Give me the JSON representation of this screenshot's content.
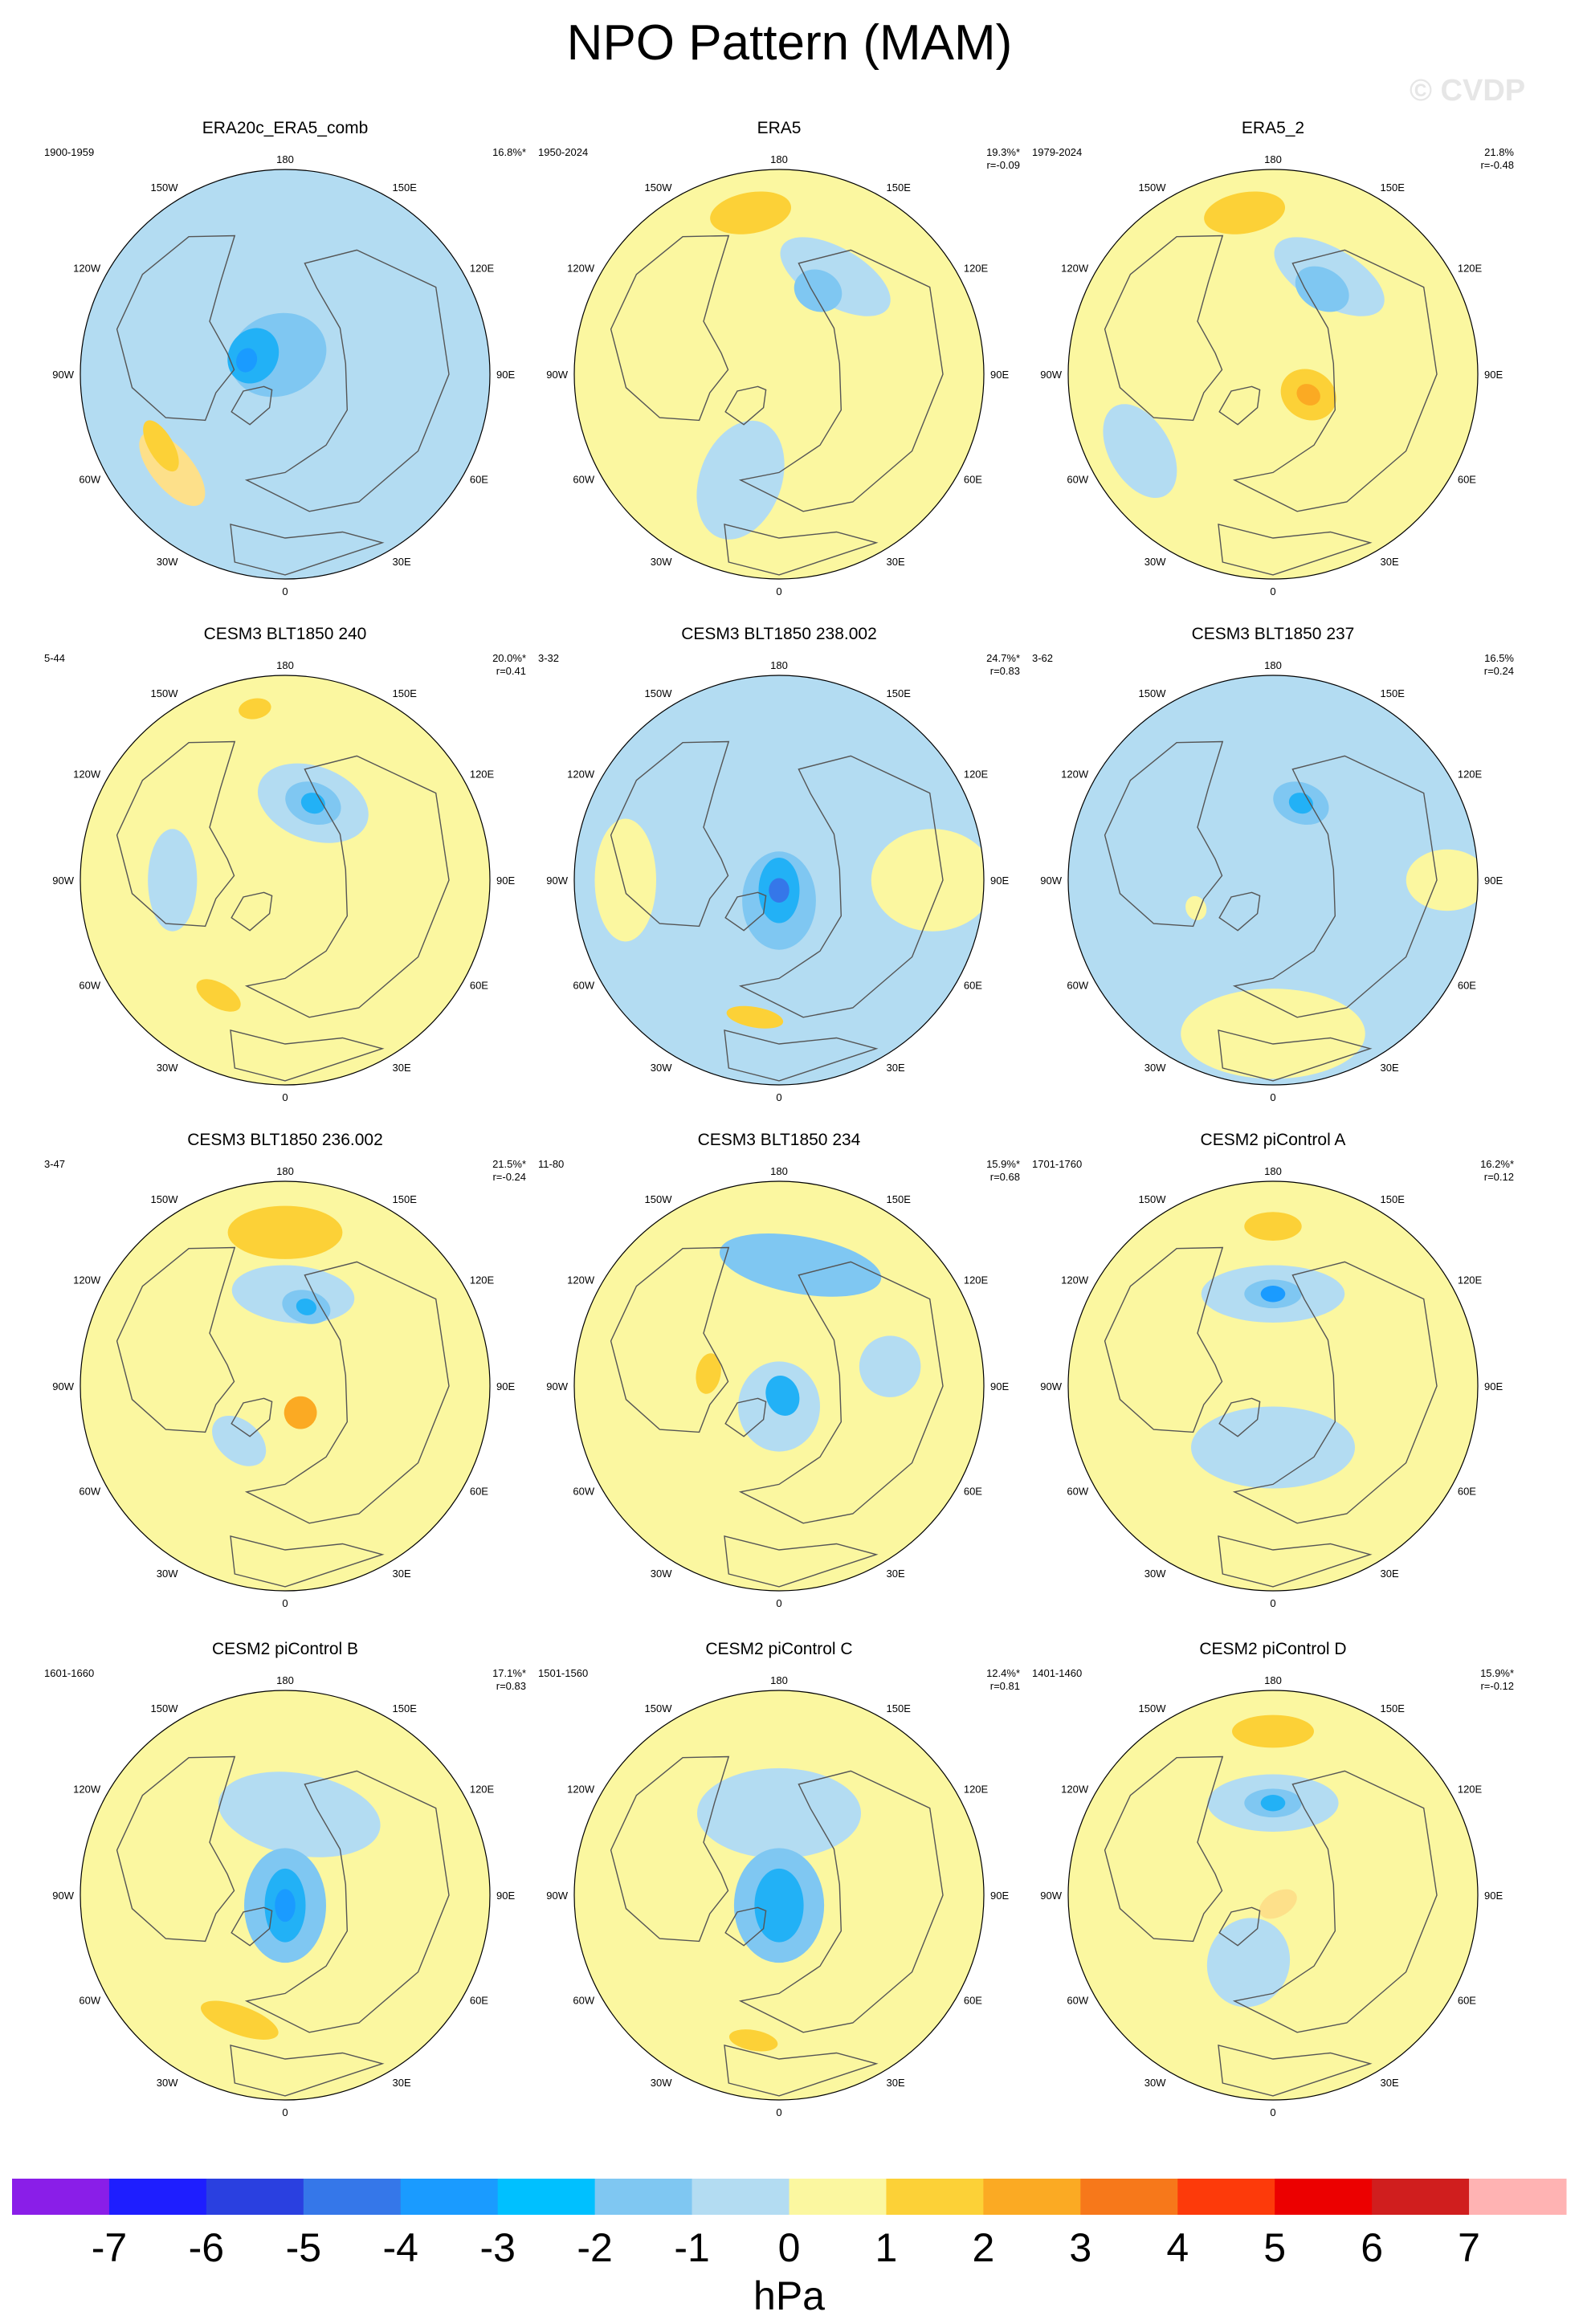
{
  "title": "NPO Pattern (MAM)",
  "watermark": "© CVDP",
  "map_labels": {
    "top": "180",
    "bottom": "0",
    "left": "90W",
    "right": "90E",
    "ul_outer": "120W",
    "ul_inner": "150W",
    "ur_inner": "150E",
    "ur_outer": "120E",
    "ll_outer": "60W",
    "ll_inner": "30W",
    "lr_inner": "30E",
    "lr_outer": "60E"
  },
  "colors": {
    "ocean": "#b3dcf2",
    "land": "#fbf7a0",
    "c_pos1": "#fde08a",
    "c_pos2": "#fcd137",
    "c_pos3": "#fbaa23",
    "c_pos4": "#f7781a",
    "c_neg1": "#7fc7f2",
    "c_neg2": "#22b1f6",
    "c_neg3": "#1a9bff",
    "c_neg4": "#3577e9",
    "coast": "#555555"
  },
  "panels": [
    {
      "title": "ERA20c_ERA5_comb",
      "years": "1900-1959",
      "pct": "16.8%*",
      "r": "",
      "base": "neg0",
      "features": [
        {
          "lon": 200,
          "d": 0.1,
          "rx": 0.24,
          "ry": 0.2,
          "lvl": "neg1"
        },
        {
          "lon": 240,
          "d": 0.18,
          "rx": 0.14,
          "ry": 0.12,
          "lvl": "neg2"
        },
        {
          "lon": 250,
          "d": 0.2,
          "rx": 0.06,
          "ry": 0.05,
          "lvl": "neg3"
        },
        {
          "lon": 310,
          "d": 0.72,
          "rx": 0.22,
          "ry": 0.1,
          "lvl": "pos1"
        },
        {
          "lon": 300,
          "d": 0.7,
          "rx": 0.14,
          "ry": 0.06,
          "lvl": "pos2"
        }
      ]
    },
    {
      "title": "ERA5",
      "years": "1950-2024",
      "pct": "19.3%*",
      "r": "r=-0.09",
      "base": "pos0",
      "features": [
        {
          "lon": 150,
          "d": 0.55,
          "rx": 0.3,
          "ry": 0.14,
          "lvl": "neg0"
        },
        {
          "lon": 190,
          "d": 0.8,
          "rx": 0.2,
          "ry": 0.1,
          "lvl": "pos2"
        },
        {
          "lon": 155,
          "d": 0.45,
          "rx": 0.12,
          "ry": 0.1,
          "lvl": "neg1"
        },
        {
          "lon": 340,
          "d": 0.55,
          "rx": 0.2,
          "ry": 0.3,
          "lvl": "neg0"
        }
      ]
    },
    {
      "title": "ERA5_2",
      "years": "1979-2024",
      "pct": "21.8%",
      "r": "r=-0.48",
      "base": "pos0",
      "features": [
        {
          "lon": 150,
          "d": 0.55,
          "rx": 0.3,
          "ry": 0.14,
          "lvl": "neg0"
        },
        {
          "lon": 190,
          "d": 0.8,
          "rx": 0.2,
          "ry": 0.1,
          "lvl": "pos2"
        },
        {
          "lon": 150,
          "d": 0.48,
          "rx": 0.14,
          "ry": 0.1,
          "lvl": "neg1"
        },
        {
          "lon": 60,
          "d": 0.2,
          "rx": 0.12,
          "ry": 0.14,
          "lvl": "pos2"
        },
        {
          "lon": 60,
          "d": 0.2,
          "rx": 0.05,
          "ry": 0.06,
          "lvl": "pos3"
        },
        {
          "lon": 300,
          "d": 0.75,
          "rx": 0.25,
          "ry": 0.15,
          "lvl": "neg0"
        }
      ]
    },
    {
      "title": "CESM3 BLT1850 240",
      "years": "5-44",
      "pct": "20.0%*",
      "r": "r=0.41",
      "base": "pos0",
      "features": [
        {
          "lon": 160,
          "d": 0.4,
          "rx": 0.28,
          "ry": 0.18,
          "lvl": "neg0"
        },
        {
          "lon": 160,
          "d": 0.4,
          "rx": 0.14,
          "ry": 0.1,
          "lvl": "neg1"
        },
        {
          "lon": 160,
          "d": 0.4,
          "rx": 0.06,
          "ry": 0.05,
          "lvl": "neg2"
        },
        {
          "lon": 190,
          "d": 0.85,
          "rx": 0.08,
          "ry": 0.05,
          "lvl": "pos2"
        },
        {
          "lon": 330,
          "d": 0.65,
          "rx": 0.12,
          "ry": 0.06,
          "lvl": "pos2"
        },
        {
          "lon": 270,
          "d": 0.55,
          "rx": 0.25,
          "ry": 0.12,
          "lvl": "neg0"
        }
      ]
    },
    {
      "title": "CESM3 BLT1850 238.002",
      "years": "3-32",
      "pct": "24.7%*",
      "r": "r=0.83",
      "base": "neg0",
      "features": [
        {
          "lon": 270,
          "d": 0.75,
          "rx": 0.3,
          "ry": 0.15,
          "lvl": "pos0"
        },
        {
          "lon": 90,
          "d": 0.75,
          "rx": 0.25,
          "ry": 0.3,
          "lvl": "pos0"
        },
        {
          "lon": 0,
          "d": 0.1,
          "rx": 0.18,
          "ry": 0.24,
          "lvl": "neg1"
        },
        {
          "lon": 0,
          "d": 0.05,
          "rx": 0.1,
          "ry": 0.16,
          "lvl": "neg2"
        },
        {
          "lon": 0,
          "d": 0.05,
          "rx": 0.05,
          "ry": 0.06,
          "lvl": "neg4"
        },
        {
          "lon": 350,
          "d": 0.68,
          "rx": 0.14,
          "ry": 0.05,
          "lvl": "pos2"
        }
      ]
    },
    {
      "title": "CESM3 BLT1850 237",
      "years": "3-62",
      "pct": "16.5%",
      "r": "r=0.24",
      "base": "neg0",
      "features": [
        {
          "lon": 0,
          "d": 0.75,
          "rx": 0.45,
          "ry": 0.22,
          "lvl": "pos0"
        },
        {
          "lon": 90,
          "d": 0.85,
          "rx": 0.15,
          "ry": 0.2,
          "lvl": "pos0"
        },
        {
          "lon": 160,
          "d": 0.4,
          "rx": 0.14,
          "ry": 0.1,
          "lvl": "neg1"
        },
        {
          "lon": 160,
          "d": 0.4,
          "rx": 0.06,
          "ry": 0.05,
          "lvl": "neg2"
        },
        {
          "lon": 290,
          "d": 0.4,
          "rx": 0.06,
          "ry": 0.05,
          "lvl": "pos0"
        }
      ]
    },
    {
      "title": "CESM3 BLT1850 236.002",
      "years": "3-47",
      "pct": "21.5%*",
      "r": "r=-0.24",
      "base": "pos0",
      "features": [
        {
          "lon": 175,
          "d": 0.45,
          "rx": 0.3,
          "ry": 0.14,
          "lvl": "neg0"
        },
        {
          "lon": 180,
          "d": 0.75,
          "rx": 0.28,
          "ry": 0.13,
          "lvl": "pos2"
        },
        {
          "lon": 165,
          "d": 0.4,
          "rx": 0.12,
          "ry": 0.08,
          "lvl": "neg1"
        },
        {
          "lon": 165,
          "d": 0.4,
          "rx": 0.05,
          "ry": 0.04,
          "lvl": "neg2"
        },
        {
          "lon": 30,
          "d": 0.15,
          "rx": 0.08,
          "ry": 0.08,
          "lvl": "pos3"
        },
        {
          "lon": 320,
          "d": 0.35,
          "rx": 0.15,
          "ry": 0.1,
          "lvl": "neg0"
        }
      ]
    },
    {
      "title": "CESM3 BLT1850 234",
      "years": "11-80",
      "pct": "15.9%*",
      "r": "r=0.68",
      "base": "pos0",
      "features": [
        {
          "lon": 170,
          "d": 0.6,
          "rx": 0.4,
          "ry": 0.14,
          "lvl": "neg1"
        },
        {
          "lon": 0,
          "d": 0.1,
          "rx": 0.2,
          "ry": 0.22,
          "lvl": "neg0"
        },
        {
          "lon": 20,
          "d": 0.05,
          "rx": 0.08,
          "ry": 0.1,
          "lvl": "neg2"
        },
        {
          "lon": 260,
          "d": 0.35,
          "rx": 0.1,
          "ry": 0.06,
          "lvl": "pos2"
        },
        {
          "lon": 100,
          "d": 0.55,
          "rx": 0.15,
          "ry": 0.15,
          "lvl": "neg0"
        }
      ]
    },
    {
      "title": "CESM2 piControl A",
      "years": "1701-1760",
      "pct": "16.2%*",
      "r": "r=0.12",
      "base": "pos0",
      "features": [
        {
          "lon": 180,
          "d": 0.45,
          "rx": 0.35,
          "ry": 0.14,
          "lvl": "neg0"
        },
        {
          "lon": 0,
          "d": 0.3,
          "rx": 0.4,
          "ry": 0.2,
          "lvl": "neg0"
        },
        {
          "lon": 180,
          "d": 0.78,
          "rx": 0.14,
          "ry": 0.07,
          "lvl": "pos2"
        },
        {
          "lon": 180,
          "d": 0.45,
          "rx": 0.14,
          "ry": 0.07,
          "lvl": "neg1"
        },
        {
          "lon": 180,
          "d": 0.45,
          "rx": 0.06,
          "ry": 0.04,
          "lvl": "neg3"
        }
      ]
    },
    {
      "title": "CESM2 piControl B",
      "years": "1601-1660",
      "pct": "17.1%*",
      "r": "r=0.83",
      "base": "pos0",
      "features": [
        {
          "lon": 170,
          "d": 0.4,
          "rx": 0.4,
          "ry": 0.2,
          "lvl": "neg0"
        },
        {
          "lon": 0,
          "d": 0.05,
          "rx": 0.2,
          "ry": 0.28,
          "lvl": "neg1"
        },
        {
          "lon": 0,
          "d": 0.05,
          "rx": 0.1,
          "ry": 0.18,
          "lvl": "neg2"
        },
        {
          "lon": 0,
          "d": 0.05,
          "rx": 0.05,
          "ry": 0.08,
          "lvl": "neg3"
        },
        {
          "lon": 340,
          "d": 0.65,
          "rx": 0.2,
          "ry": 0.07,
          "lvl": "pos2"
        }
      ]
    },
    {
      "title": "CESM2 piControl C",
      "years": "1501-1560",
      "pct": "12.4%*",
      "r": "r=0.81",
      "base": "pos0",
      "features": [
        {
          "lon": 180,
          "d": 0.4,
          "rx": 0.4,
          "ry": 0.22,
          "lvl": "neg0"
        },
        {
          "lon": 0,
          "d": 0.05,
          "rx": 0.22,
          "ry": 0.28,
          "lvl": "neg1"
        },
        {
          "lon": 0,
          "d": 0.05,
          "rx": 0.12,
          "ry": 0.18,
          "lvl": "neg2"
        },
        {
          "lon": 350,
          "d": 0.72,
          "rx": 0.12,
          "ry": 0.05,
          "lvl": "pos2"
        }
      ]
    },
    {
      "title": "CESM2 piControl D",
      "years": "1401-1460",
      "pct": "15.9%*",
      "r": "r=-0.12",
      "base": "pos0",
      "features": [
        {
          "lon": 180,
          "d": 0.45,
          "rx": 0.32,
          "ry": 0.14,
          "lvl": "neg0"
        },
        {
          "lon": 180,
          "d": 0.8,
          "rx": 0.2,
          "ry": 0.08,
          "lvl": "pos2"
        },
        {
          "lon": 180,
          "d": 0.45,
          "rx": 0.14,
          "ry": 0.07,
          "lvl": "neg1"
        },
        {
          "lon": 180,
          "d": 0.45,
          "rx": 0.06,
          "ry": 0.04,
          "lvl": "neg2"
        },
        {
          "lon": 340,
          "d": 0.35,
          "rx": 0.2,
          "ry": 0.22,
          "lvl": "neg0"
        },
        {
          "lon": 30,
          "d": 0.05,
          "rx": 0.1,
          "ry": 0.06,
          "lvl": "pos1"
        }
      ]
    }
  ],
  "colorbar": {
    "colors": [
      "#8a1ee8",
      "#1e1eff",
      "#2a40e0",
      "#3577e9",
      "#1a9bff",
      "#00c0ff",
      "#7fc7f2",
      "#b3dcf2",
      "#fbf7a0",
      "#fcd137",
      "#fbaa23",
      "#f7781a",
      "#fd3a0a",
      "#ec0000",
      "#d01e1e",
      "#ffb3b3"
    ],
    "ticks": [
      "-7",
      "-6",
      "-5",
      "-4",
      "-3",
      "-2",
      "-1",
      "0",
      "1",
      "2",
      "3",
      "4",
      "5",
      "6",
      "7"
    ],
    "unit": "hPa"
  }
}
